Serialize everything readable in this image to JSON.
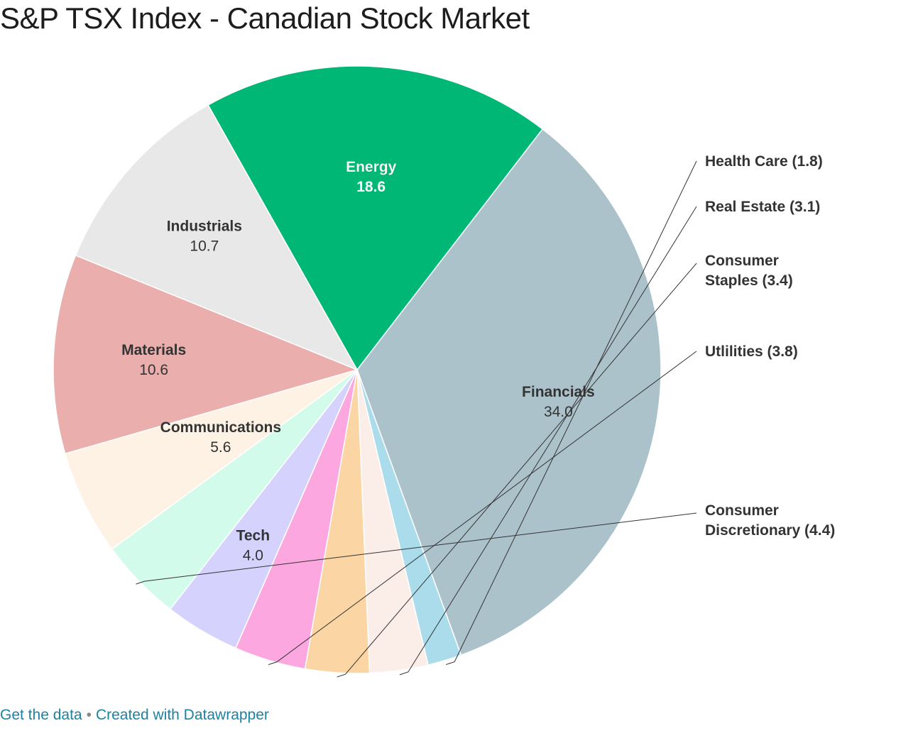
{
  "title": "S&P TSX Index - Canadian Stock Market",
  "footer": {
    "get_data": "Get the data",
    "separator": "•",
    "created_with": "Created with Datawrapper"
  },
  "chart_data": {
    "type": "pie",
    "title": "S&P TSX Index - Canadian Stock Market",
    "slices": [
      {
        "label": "Financials",
        "value": 34.0,
        "value_text": "34.0",
        "color": "#abc2cb",
        "label_mode": "inside"
      },
      {
        "label": "Health Care",
        "value": 1.8,
        "value_text": "Health Care (1.8)",
        "color": "#aadcec",
        "label_mode": "outside"
      },
      {
        "label": "Real Estate",
        "value": 3.1,
        "value_text": "Real Estate (3.1)",
        "color": "#fbeee9",
        "label_mode": "outside"
      },
      {
        "label": "Consumer Staples",
        "value": 3.4,
        "value_text": "Consumer Staples (3.4)",
        "color": "#fbd6a4",
        "label_mode": "outside"
      },
      {
        "label": "Utlilities",
        "value": 3.8,
        "value_text": "Utlilities (3.8)",
        "color": "#fca7e0",
        "label_mode": "outside"
      },
      {
        "label": "Tech",
        "value": 4.0,
        "value_text": "4.0",
        "color": "#d5d3fd",
        "label_mode": "inside"
      },
      {
        "label": "Consumer Discretionary",
        "value": 4.4,
        "value_text": "Consumer Discretionary (4.4)",
        "color": "#d3fbec",
        "label_mode": "outside"
      },
      {
        "label": "Communications",
        "value": 5.6,
        "value_text": "5.6",
        "color": "#fdf2e4",
        "label_mode": "inside"
      },
      {
        "label": "Materials",
        "value": 10.6,
        "value_text": "10.6",
        "color": "#eaaeac",
        "label_mode": "inside"
      },
      {
        "label": "Industrials",
        "value": 10.7,
        "value_text": "10.7",
        "color": "#e8e8e8",
        "label_mode": "inside"
      },
      {
        "label": "Energy",
        "value": 18.6,
        "value_text": "18.6",
        "color": "#00b775",
        "label_mode": "inside"
      }
    ],
    "legend": "none"
  }
}
